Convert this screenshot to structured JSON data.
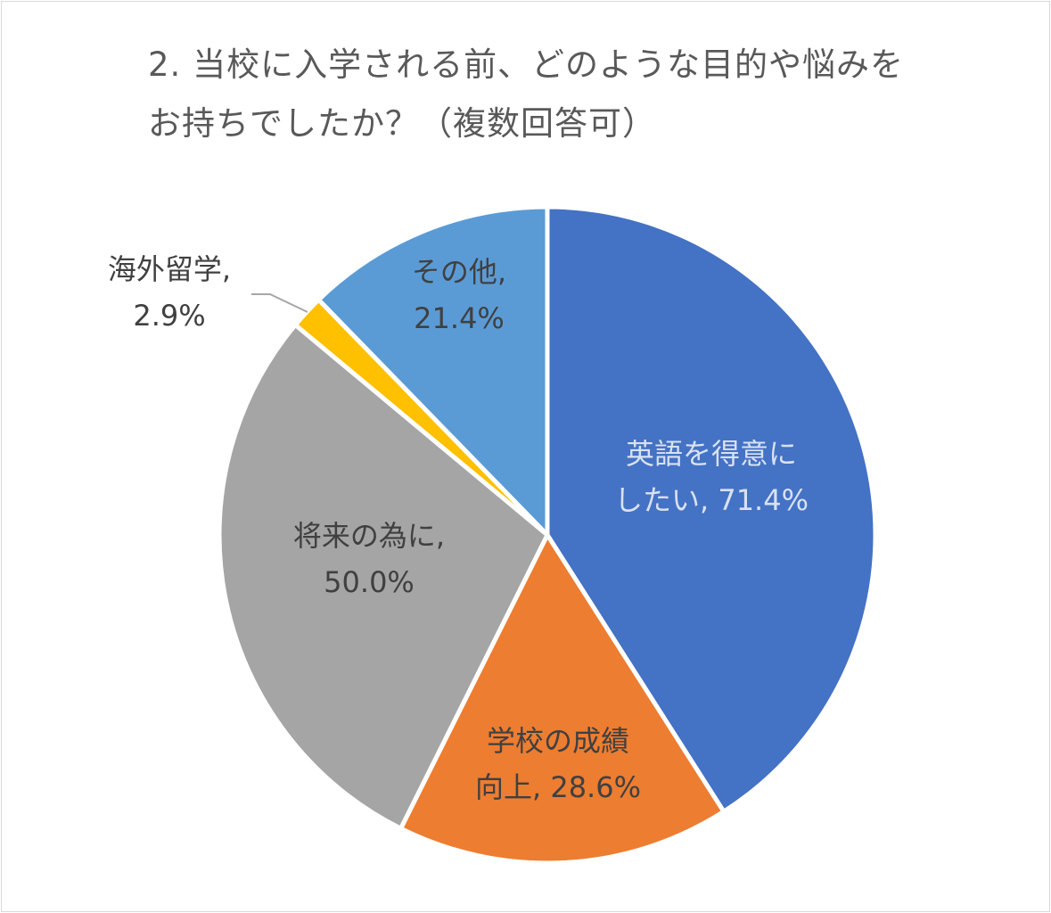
{
  "chart_data": {
    "type": "pie",
    "title_lines": [
      "2. 当校に入学される前、どのような目的や悩みを",
      "お持ちでしたか？（複数回答可）"
    ],
    "slices": [
      {
        "label_lines": [
          "英語を得意に",
          "したい, 71.4%"
        ],
        "category": "英語を得意にしたい",
        "value": 71.4,
        "color": "#4472c4",
        "label_color": "#d9e1f2"
      },
      {
        "label_lines": [
          "学校の成績",
          "向上, 28.6%"
        ],
        "category": "学校の成績向上",
        "value": 28.6,
        "color": "#ed7d31",
        "label_color": "#404040"
      },
      {
        "label_lines": [
          "将来の為に,",
          "50.0%"
        ],
        "category": "将来の為に",
        "value": 50.0,
        "color": "#a5a5a5",
        "label_color": "#404040"
      },
      {
        "label_lines": [
          "海外留学,",
          "2.9%"
        ],
        "category": "海外留学",
        "value": 2.9,
        "color": "#ffc000",
        "label_color": "#404040"
      },
      {
        "label_lines": [
          "その他,",
          "21.4%"
        ],
        "category": "その他",
        "value": 21.4,
        "color": "#5b9bd5",
        "label_color": "#404040"
      }
    ],
    "legend": "none"
  }
}
